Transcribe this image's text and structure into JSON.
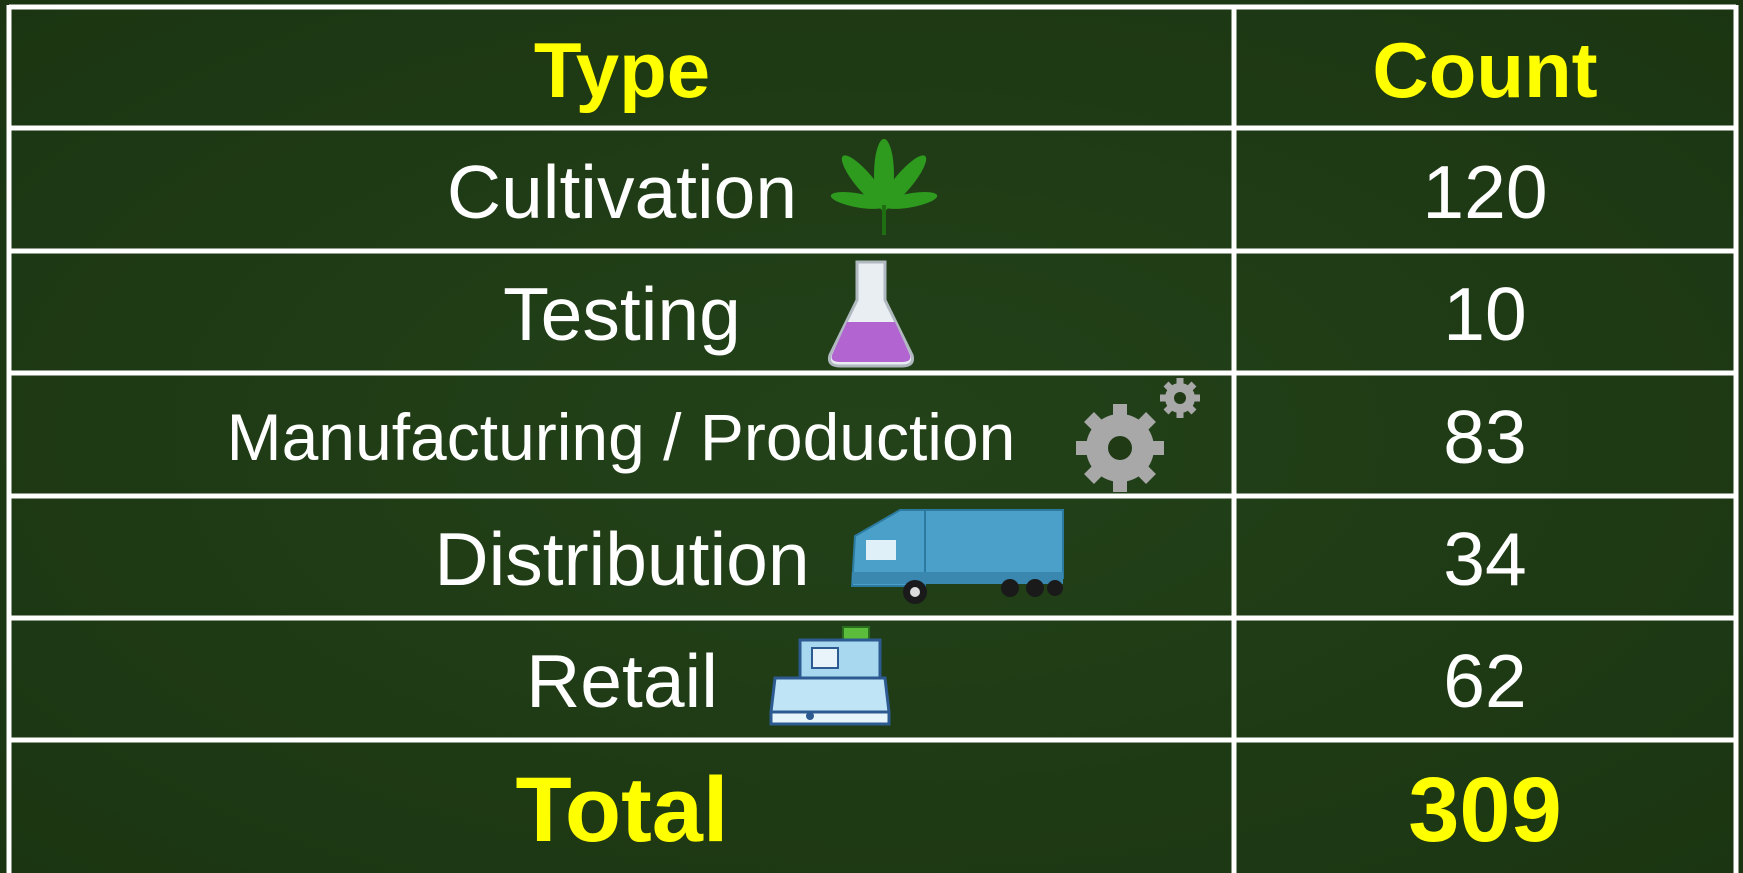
{
  "table": {
    "header": [
      "Type",
      "Count"
    ],
    "rows": [
      [
        "Cultivation",
        120
      ],
      [
        "Testing",
        10
      ],
      [
        "Manufacturing / Production",
        83
      ],
      [
        "Distribution",
        34
      ],
      [
        "Retail",
        62
      ]
    ],
    "total": [
      "Total",
      309
    ]
  }
}
